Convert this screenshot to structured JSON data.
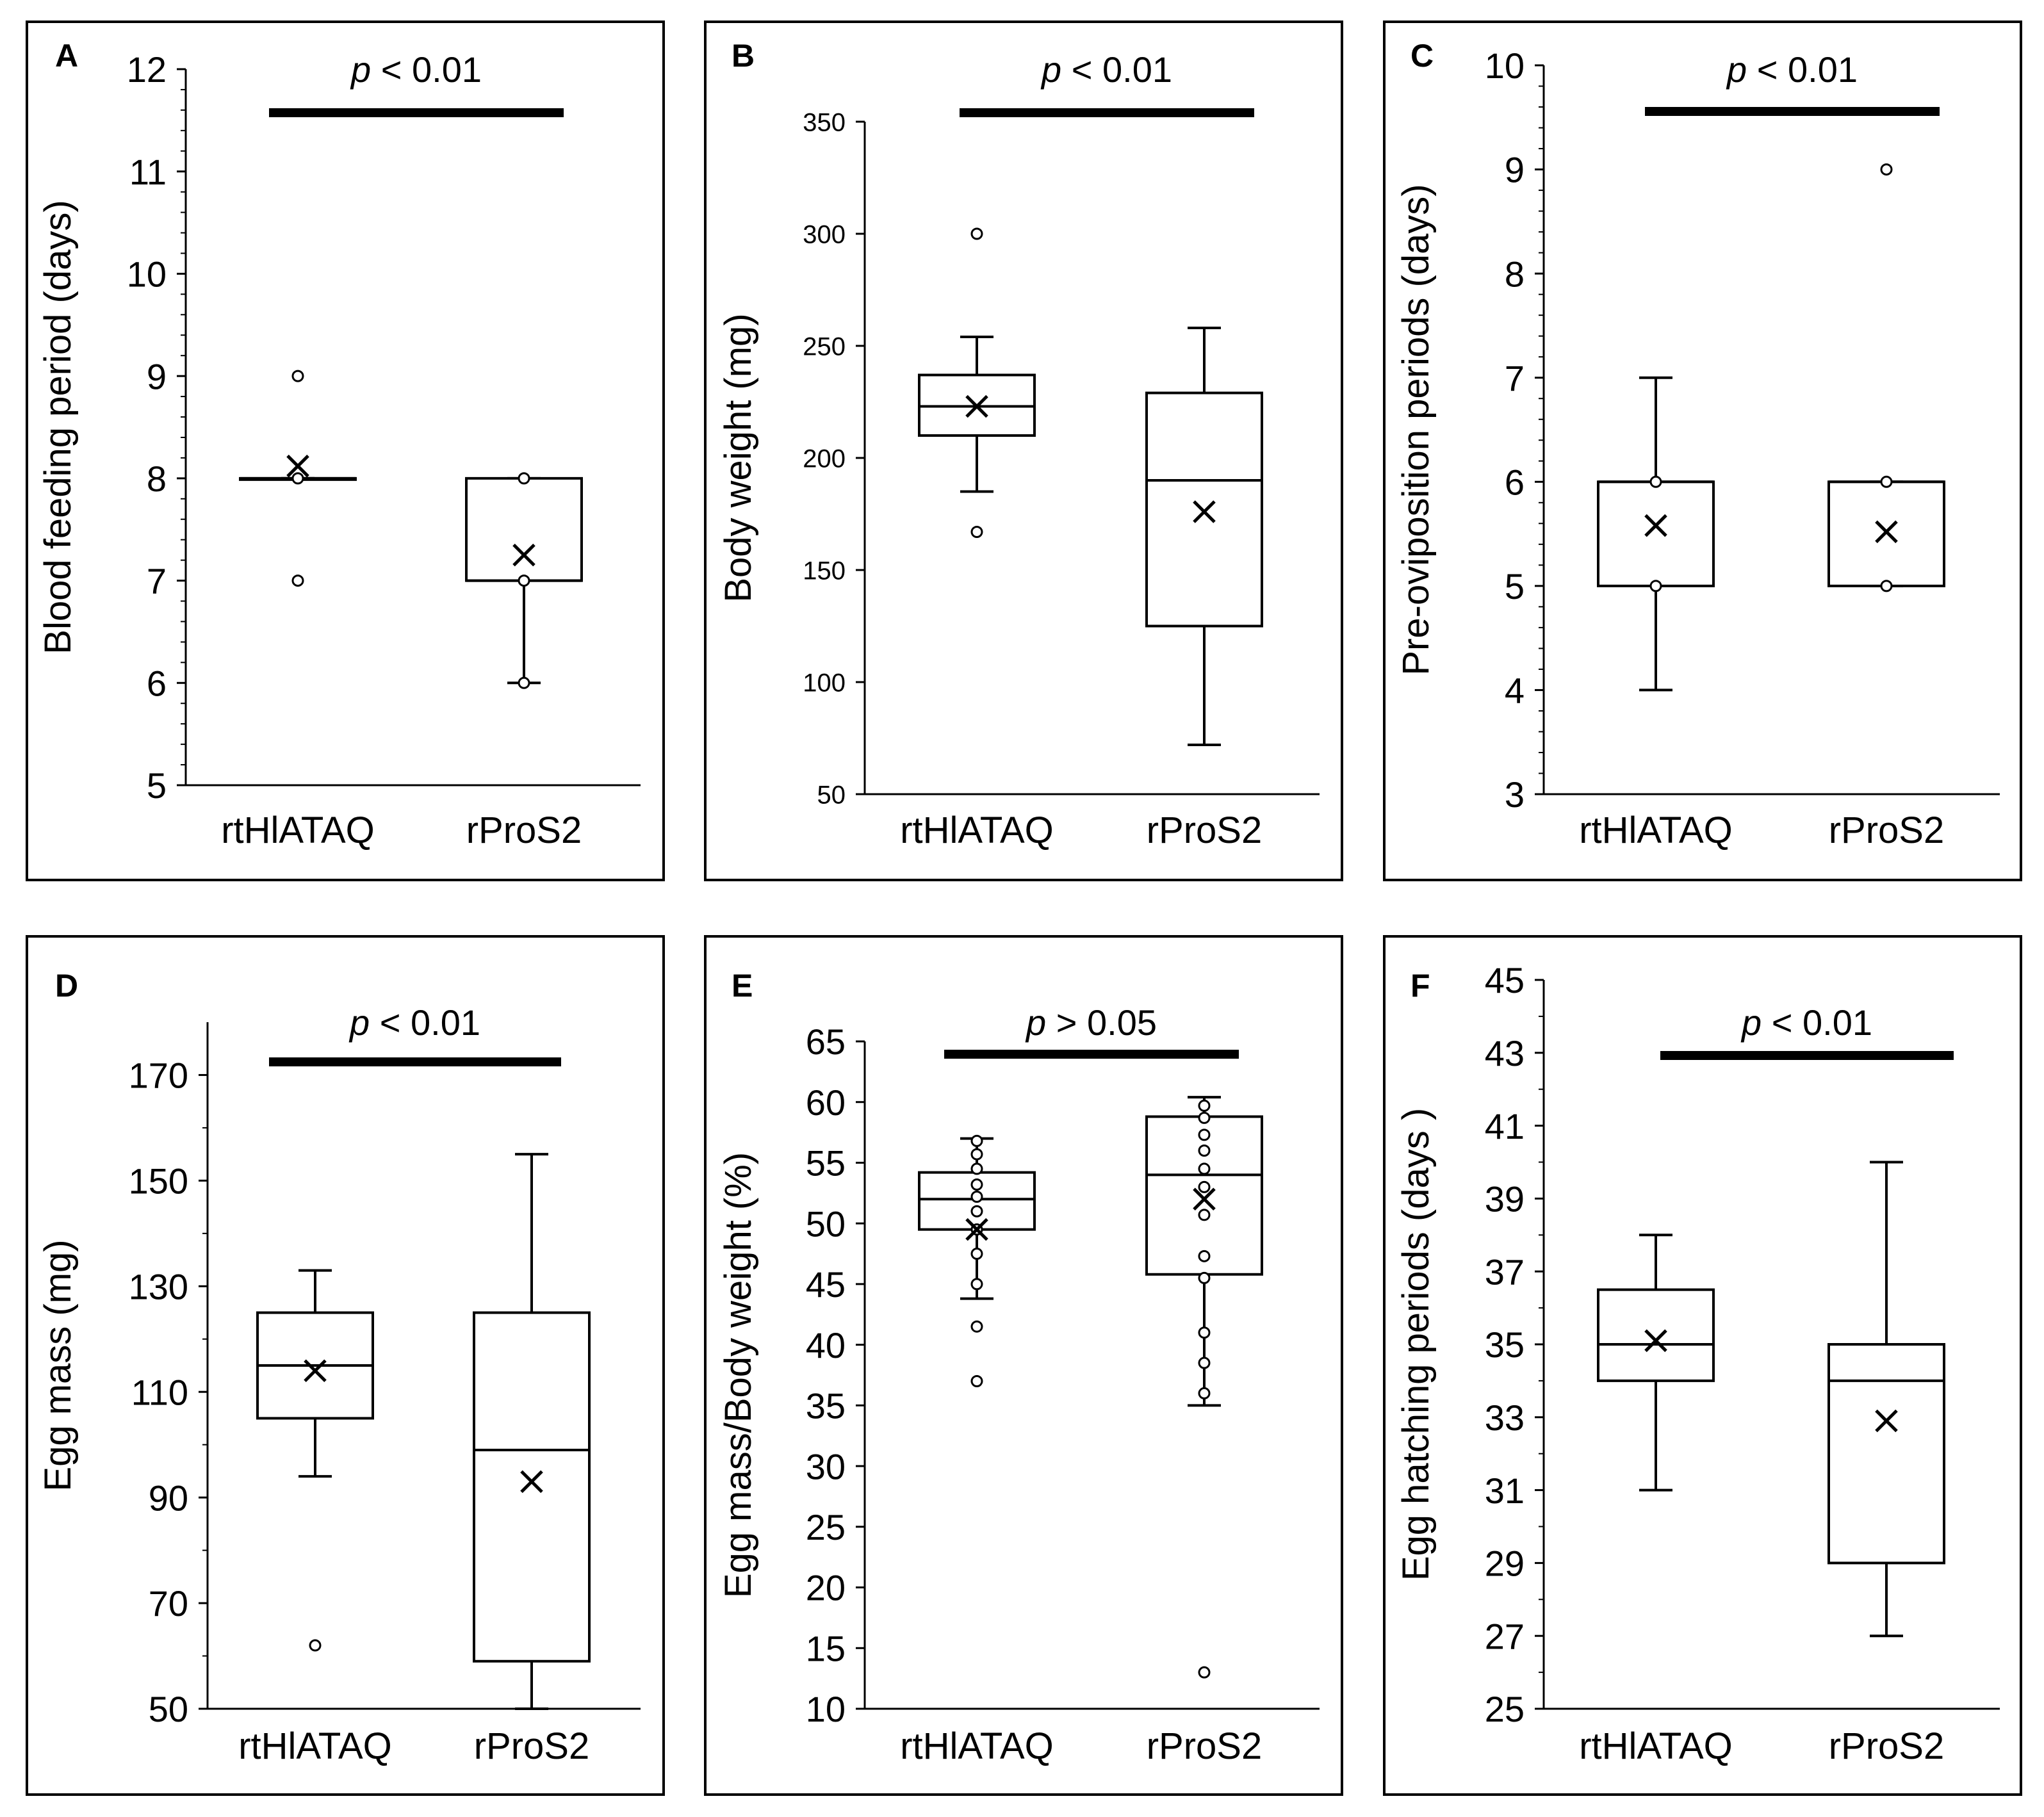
{
  "chart_data": [
    {
      "panel": "A",
      "type": "box",
      "ylabel": "Blood feeding period (days)",
      "yticks": [
        5,
        6,
        7,
        8,
        9,
        10,
        11,
        12
      ],
      "ylim": [
        5,
        12
      ],
      "categories": [
        "rtHlATAQ",
        "rProS2"
      ],
      "significance": {
        "p": "p",
        "label": " < 0.01"
      },
      "groups": [
        {
          "name": "rtHlATAQ",
          "q1": 8,
          "median": 8,
          "q3": 8,
          "whisker_low": 8,
          "whisker_high": 8,
          "mean": 8.12,
          "points": [
            7,
            8,
            9
          ]
        },
        {
          "name": "rProS2",
          "q1": 7,
          "median": 7,
          "q3": 8,
          "whisker_low": 6,
          "whisker_high": 8,
          "mean": 7.25,
          "points": [
            6,
            7,
            8
          ]
        }
      ]
    },
    {
      "panel": "B",
      "type": "box",
      "ylabel": "Body weight (mg)",
      "yticks": [
        50,
        100,
        150,
        200,
        250,
        300,
        350
      ],
      "ylim": [
        50,
        350
      ],
      "categories": [
        "rtHlATAQ",
        "rProS2"
      ],
      "significance": {
        "p": "p",
        "label": " < 0.01"
      },
      "groups": [
        {
          "name": "rtHlATAQ",
          "q1": 210,
          "median": 223,
          "q3": 237,
          "whisker_low": 185,
          "whisker_high": 254,
          "mean": 223,
          "points": [
            167,
            300
          ]
        },
        {
          "name": "rProS2",
          "q1": 125,
          "median": 190,
          "q3": 229,
          "whisker_low": 72,
          "whisker_high": 258,
          "mean": 176,
          "points": []
        }
      ]
    },
    {
      "panel": "C",
      "type": "box",
      "ylabel": "Pre-oviposition periods (days)",
      "yticks": [
        3,
        4,
        5,
        6,
        7,
        8,
        9,
        10
      ],
      "ylim": [
        3,
        10
      ],
      "categories": [
        "rtHlATAQ",
        "rProS2"
      ],
      "significance": {
        "p": "p",
        "label": " < 0.01"
      },
      "groups": [
        {
          "name": "rtHlATAQ",
          "q1": 5,
          "median": 6,
          "q3": 6,
          "whisker_low": 4,
          "whisker_high": 7,
          "mean": 5.58,
          "points": [
            5,
            6
          ]
        },
        {
          "name": "rProS2",
          "q1": 5,
          "median": 6,
          "q3": 6,
          "whisker_low": 5,
          "whisker_high": 6,
          "mean": 5.52,
          "points": [
            5,
            6,
            9
          ]
        }
      ]
    },
    {
      "panel": "D",
      "type": "box",
      "ylabel": "Egg mass (mg)",
      "yticks": [
        50,
        70,
        90,
        110,
        130,
        150,
        170
      ],
      "ylim": [
        50,
        180
      ],
      "categories": [
        "rtHlATAQ",
        "rProS2"
      ],
      "significance": {
        "p": "p",
        "label": " < 0.01"
      },
      "groups": [
        {
          "name": "rtHlATAQ",
          "q1": 105,
          "median": 115,
          "q3": 125,
          "whisker_low": 94,
          "whisker_high": 133,
          "mean": 114,
          "points": [
            62
          ]
        },
        {
          "name": "rProS2",
          "q1": 59,
          "median": 99,
          "q3": 125,
          "whisker_low": 50,
          "whisker_high": 155,
          "mean": 93,
          "points": []
        }
      ]
    },
    {
      "panel": "E",
      "type": "box",
      "ylabel": "Egg mass/Body weight (%)",
      "yticks": [
        10,
        15,
        20,
        25,
        30,
        35,
        40,
        45,
        50,
        55,
        60,
        65
      ],
      "ylim": [
        10,
        65
      ],
      "categories": [
        "rtHlATAQ",
        "rProS2"
      ],
      "significance": {
        "p": "p",
        "label": " > 0.05"
      },
      "groups": [
        {
          "name": "rtHlATAQ",
          "q1": 49.5,
          "median": 52,
          "q3": 54.2,
          "whisker_low": 43.8,
          "whisker_high": 57,
          "mean": 49.5,
          "points": [
            37,
            41.5,
            45,
            47.5,
            49.5,
            51,
            52.2,
            53.2,
            54.5,
            55.7,
            56.8
          ]
        },
        {
          "name": "rProS2",
          "q1": 45.8,
          "median": 54,
          "q3": 58.8,
          "whisker_low": 35,
          "whisker_high": 60.4,
          "mean": 52,
          "points": [
            13,
            36,
            38.5,
            41,
            45.5,
            47.3,
            50.7,
            53,
            54.5,
            56,
            57.3,
            58.7,
            59.7
          ]
        }
      ]
    },
    {
      "panel": "F",
      "type": "box",
      "ylabel": "Egg hatching periods (days )",
      "yticks": [
        25,
        27,
        29,
        31,
        33,
        35,
        37,
        39,
        41,
        43,
        45
      ],
      "ylim": [
        25,
        45
      ],
      "categories": [
        "rtHlATAQ",
        "rProS2"
      ],
      "significance": {
        "p": "p",
        "label": " < 0.01"
      },
      "groups": [
        {
          "name": "rtHlATAQ",
          "q1": 34,
          "median": 35,
          "q3": 36.5,
          "whisker_low": 31,
          "whisker_high": 38,
          "mean": 35.1,
          "points": []
        },
        {
          "name": "rProS2",
          "q1": 29,
          "median": 34,
          "q3": 35,
          "whisker_low": 27,
          "whisker_high": 40,
          "mean": 32.9,
          "points": []
        }
      ]
    }
  ]
}
